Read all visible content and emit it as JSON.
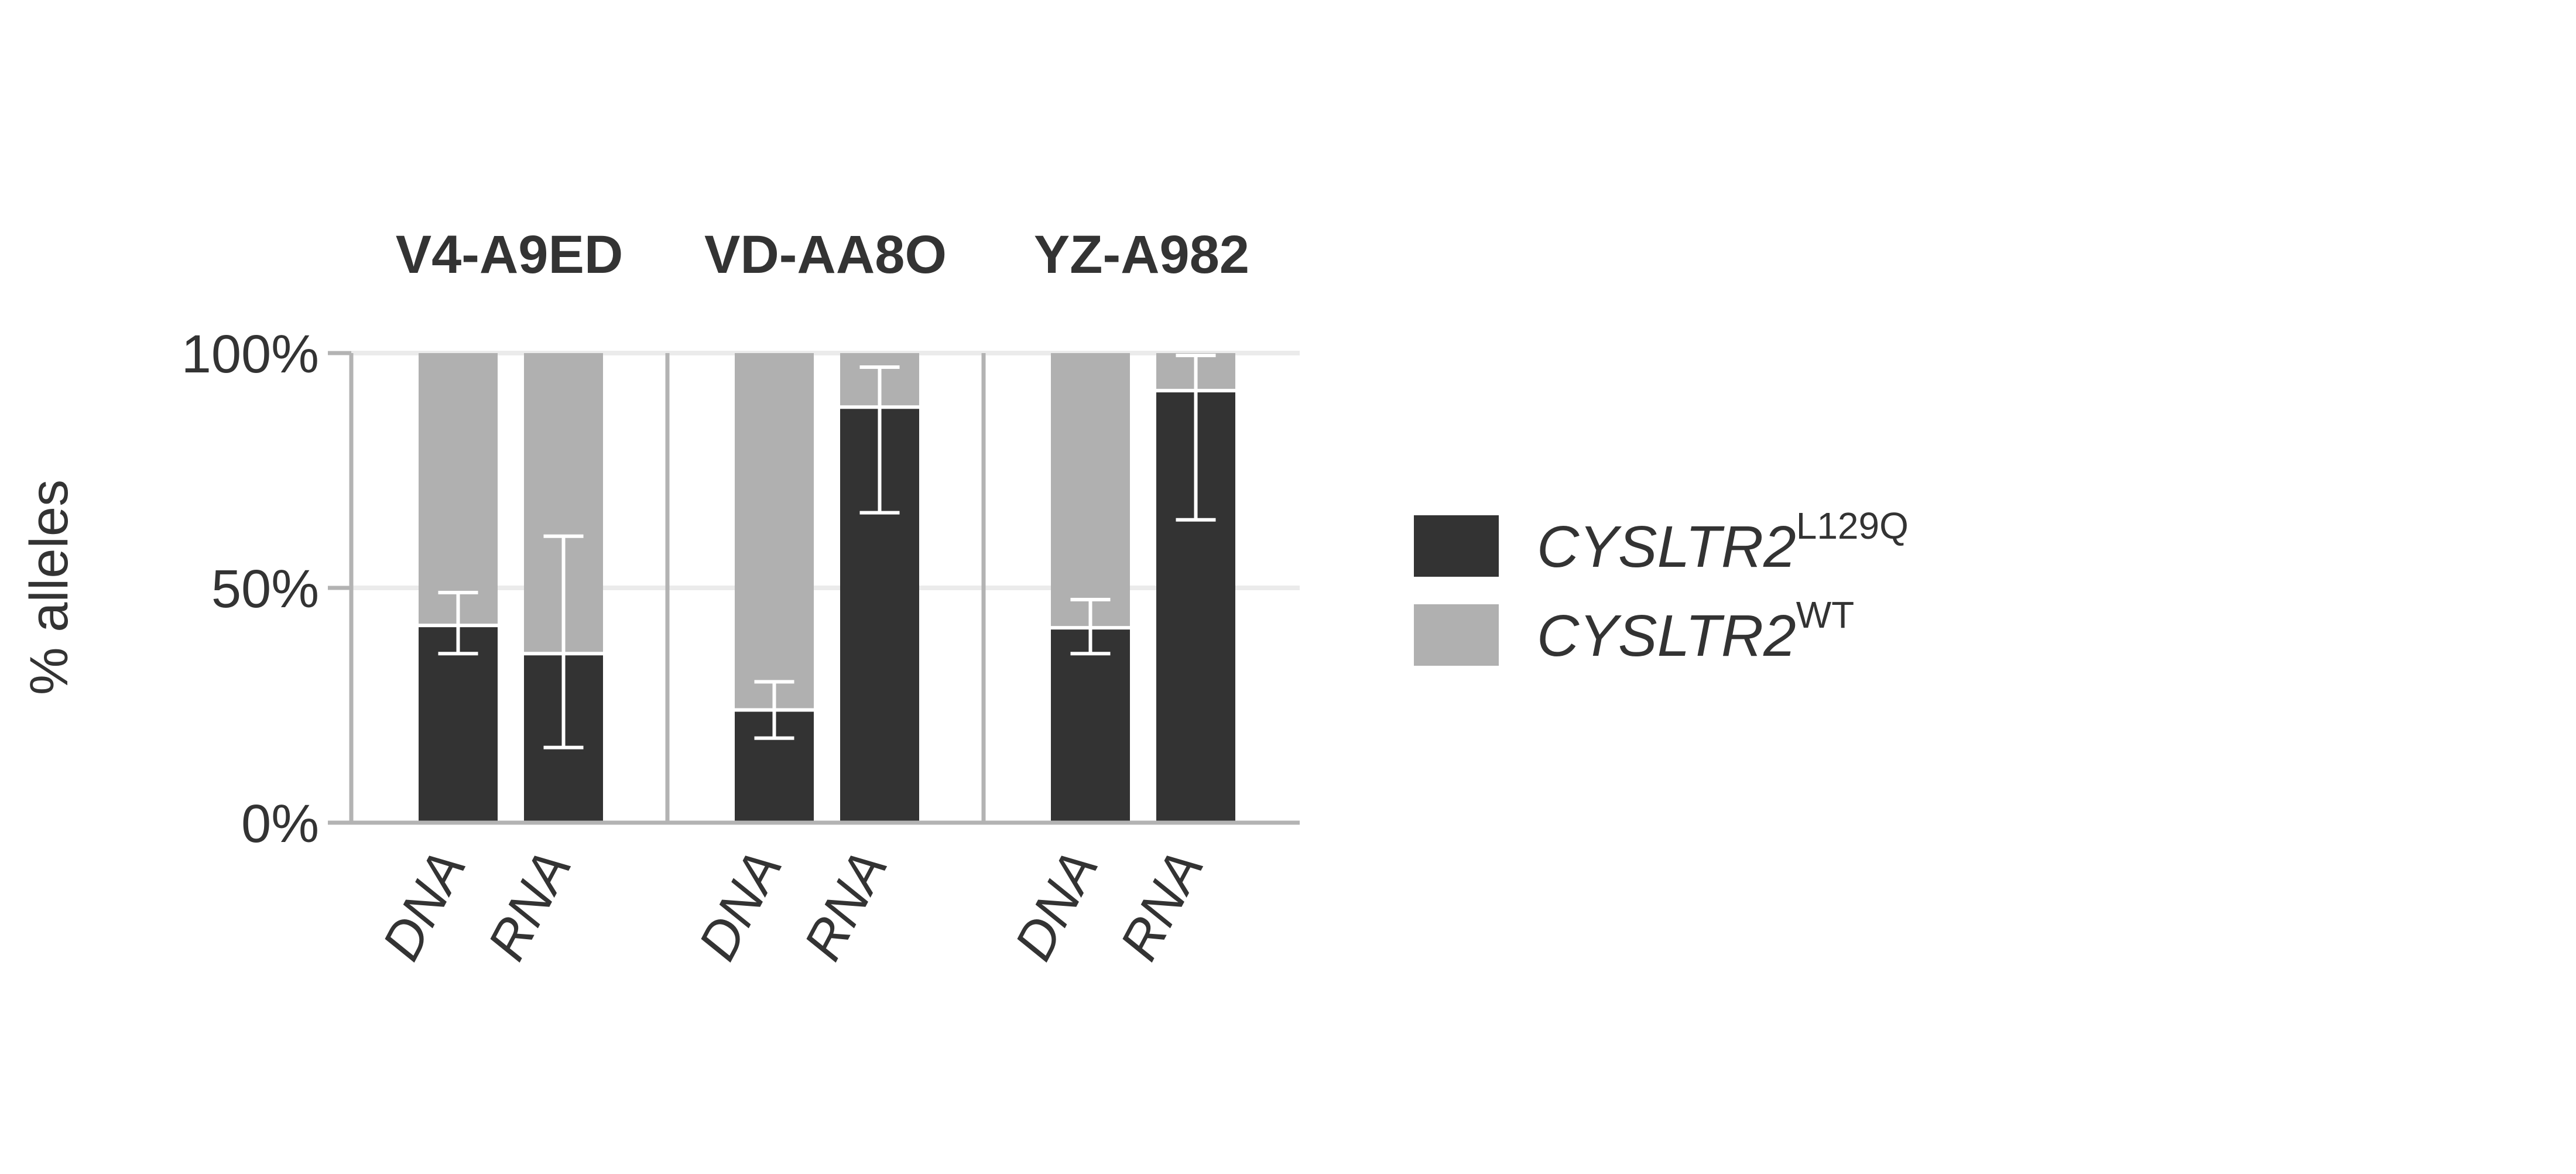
{
  "colors": {
    "mutant": "#333333",
    "wildtype": "#b0b0b0",
    "gridline": "#ebebeb",
    "axis": "#b3b3b3",
    "errorbar": "#ffffff"
  },
  "chart_data": {
    "type": "bar",
    "stacked": true,
    "ylabel": "% alleles",
    "ylim": [
      0,
      100
    ],
    "yticks": [
      "0%",
      "50%",
      "100%"
    ],
    "ytick_values": [
      0,
      50,
      100
    ],
    "grid": true,
    "legend_position": "right",
    "legend": [
      {
        "key": "mutant",
        "base": "CYSLTR2",
        "sup": "L129Q"
      },
      {
        "key": "wildtype",
        "base": "CYSLTR2",
        "sup": "WT"
      }
    ],
    "facets": [
      {
        "title": "V4-A9ED",
        "bars": [
          {
            "category": "DNA",
            "mutant": 42,
            "wildtype": 58,
            "err_low": 36,
            "err_high": 49
          },
          {
            "category": "RNA",
            "mutant": 36,
            "wildtype": 64,
            "err_low": 16,
            "err_high": 61
          }
        ]
      },
      {
        "title": "VD-AA8O",
        "bars": [
          {
            "category": "DNA",
            "mutant": 24,
            "wildtype": 76,
            "err_low": 18,
            "err_high": 30
          },
          {
            "category": "RNA",
            "mutant": 88.5,
            "wildtype": 11.5,
            "err_low": 66,
            "err_high": 97
          }
        ]
      },
      {
        "title": "YZ-A982",
        "bars": [
          {
            "category": "DNA",
            "mutant": 41.5,
            "wildtype": 58.5,
            "err_low": 36,
            "err_high": 47.5
          },
          {
            "category": "RNA",
            "mutant": 92,
            "wildtype": 8,
            "err_low": 64.5,
            "err_high": 99.5
          }
        ]
      }
    ]
  }
}
